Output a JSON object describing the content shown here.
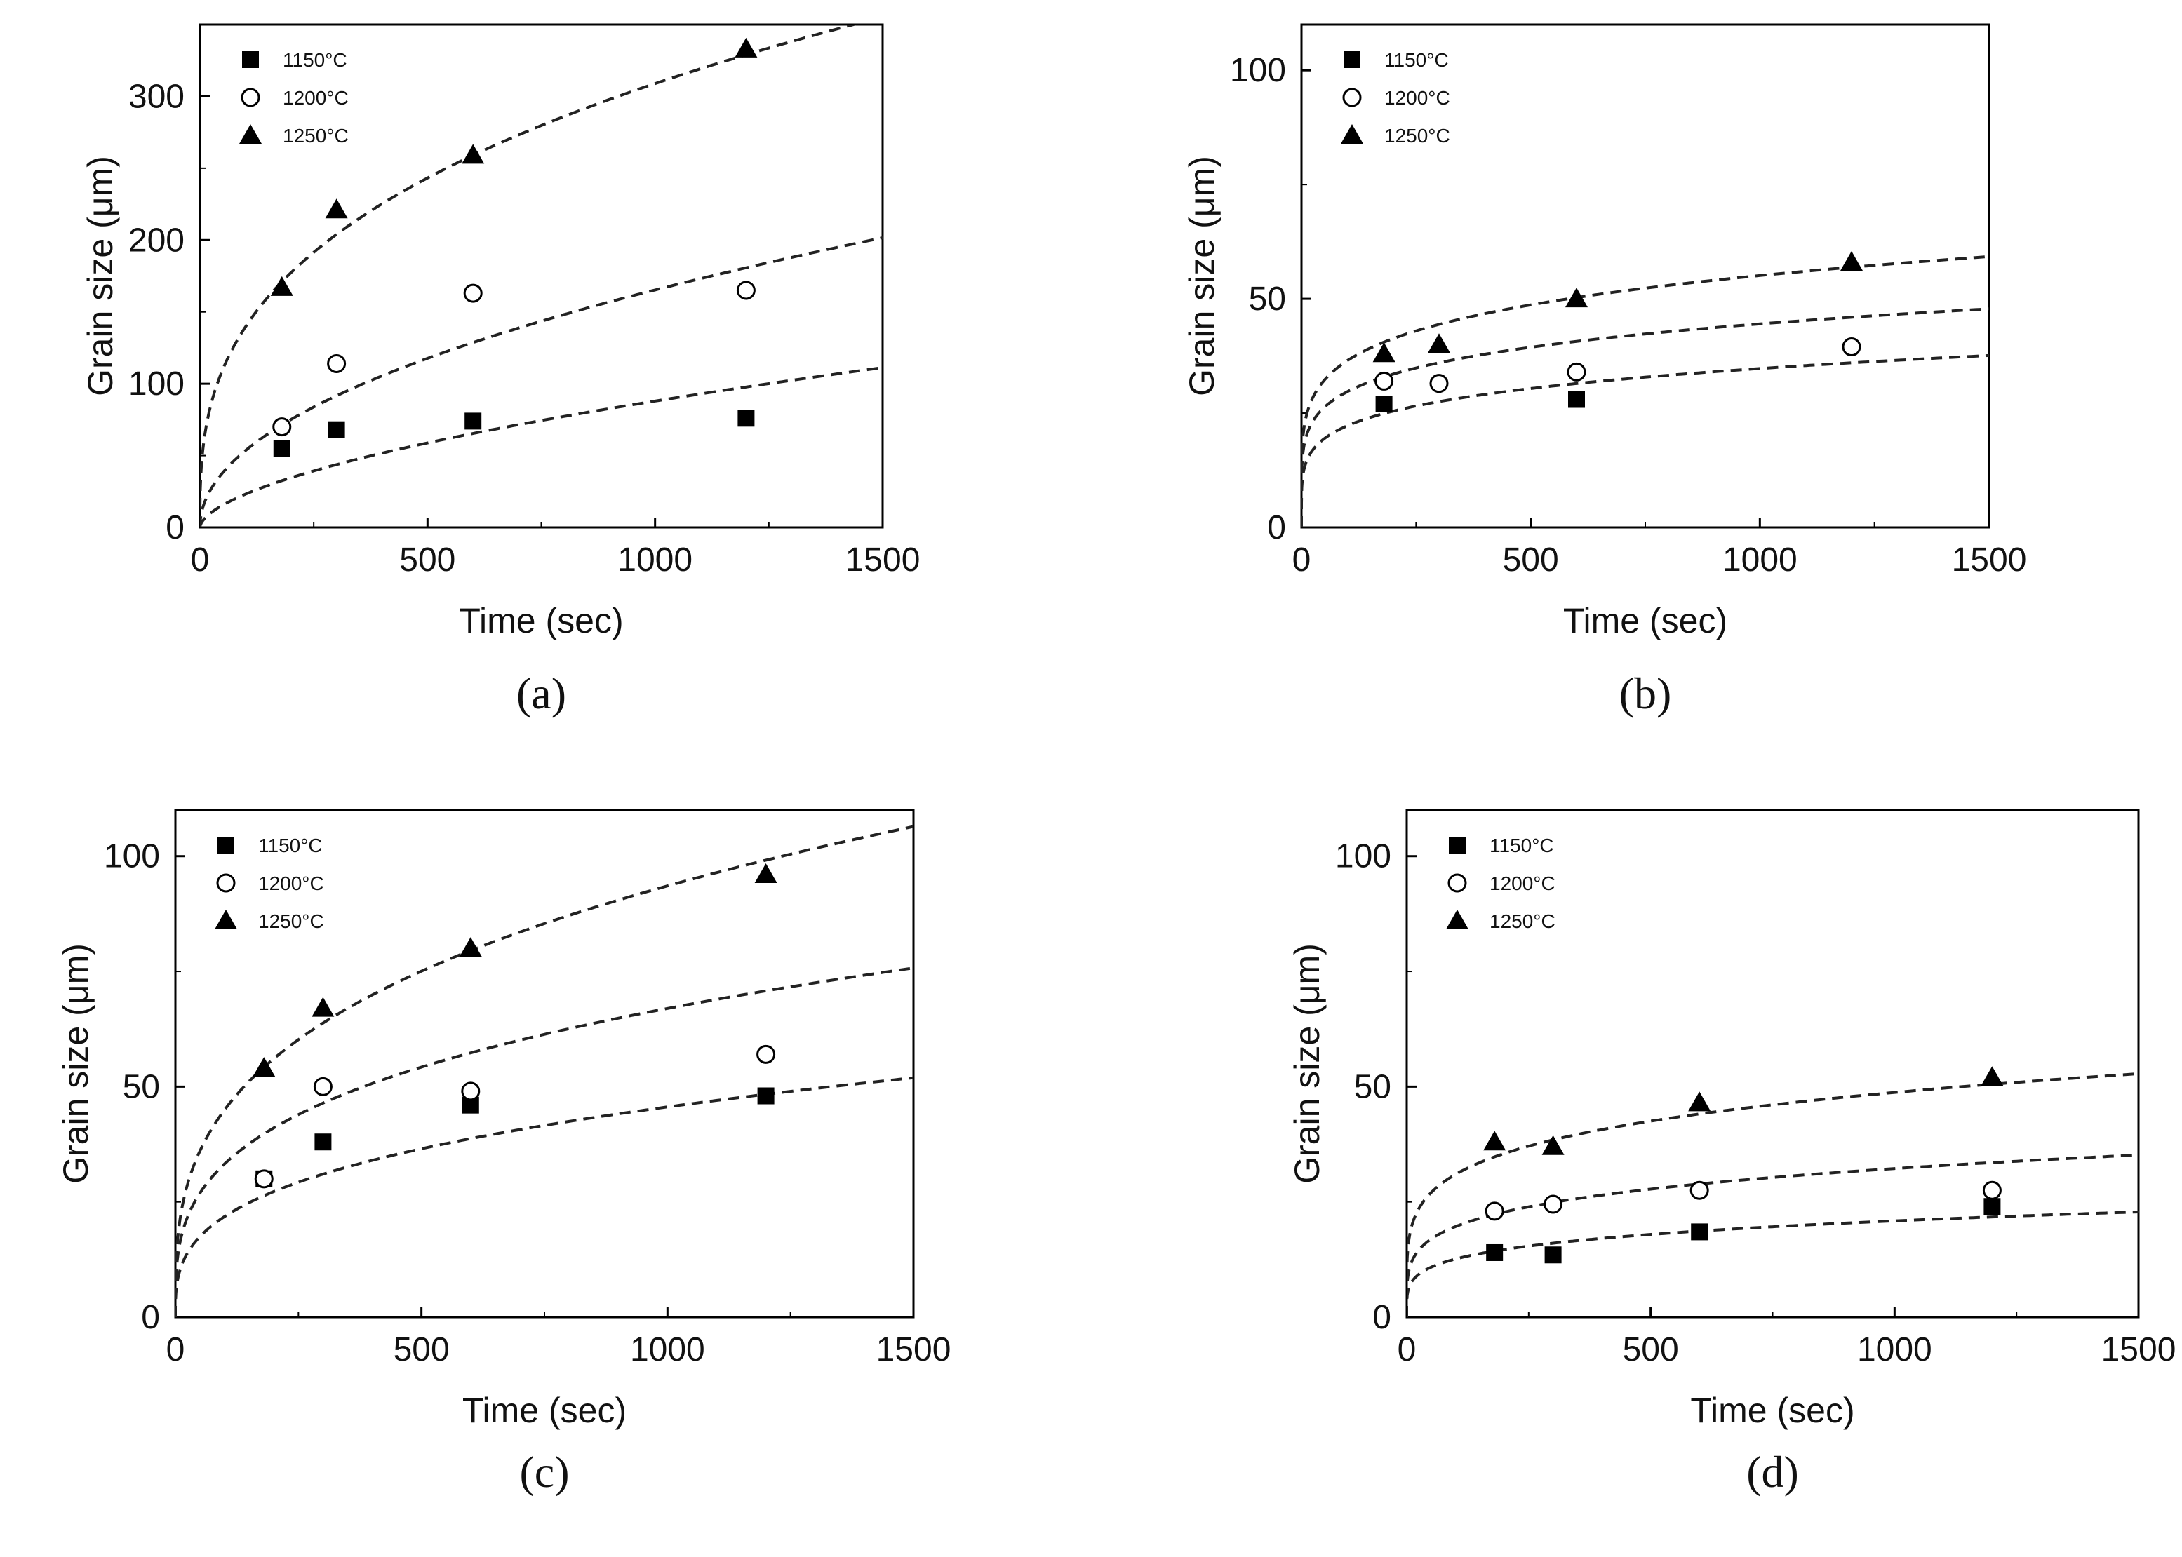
{
  "chart_data": [
    {
      "type": "scatter",
      "panel_label": "(a)",
      "xlabel": "Time (sec)",
      "ylabel": "Grain size (μm)",
      "xlim": [
        0,
        1500
      ],
      "ylim": [
        0,
        350
      ],
      "xticks": [
        0,
        500,
        1000,
        1500
      ],
      "yticks": [
        0,
        100,
        200,
        300
      ],
      "legend_position": "top-left",
      "series": [
        {
          "name": "1150°C",
          "marker": "square",
          "x": [
            180,
            300,
            600,
            1200
          ],
          "y": [
            55,
            68,
            74,
            76
          ],
          "fit": {
            "a": 1.6,
            "n": 0.58
          }
        },
        {
          "name": "1200°C",
          "marker": "circle",
          "x": [
            180,
            300,
            600,
            1200
          ],
          "y": [
            70,
            114,
            163,
            165
          ],
          "fit": {
            "a": 5.6,
            "n": 0.49
          }
        },
        {
          "name": "1250°C",
          "marker": "triangle",
          "x": [
            180,
            300,
            600,
            1200
          ],
          "y": [
            167,
            221,
            259,
            333
          ],
          "fit": {
            "a": 28.5,
            "n": 0.345
          }
        }
      ]
    },
    {
      "type": "scatter",
      "panel_label": "(b)",
      "xlabel": "Time (sec)",
      "ylabel": "Grain size (μm)",
      "xlim": [
        0,
        1500
      ],
      "ylim": [
        0,
        110
      ],
      "xticks": [
        0,
        500,
        1000,
        1500
      ],
      "yticks": [
        0,
        50,
        100
      ],
      "legend_position": "top-left",
      "series": [
        {
          "name": "1150°C",
          "marker": "square",
          "x": [
            180,
            600
          ],
          "y": [
            27,
            28
          ],
          "fit": {
            "a": 9.1,
            "n": 0.194
          }
        },
        {
          "name": "1200°C",
          "marker": "circle",
          "x": [
            180,
            300,
            600,
            1200
          ],
          "y": [
            32,
            31.5,
            34,
            39.5
          ],
          "fit": {
            "a": 13.2,
            "n": 0.176
          }
        },
        {
          "name": "1250°C",
          "marker": "triangle",
          "x": [
            180,
            300,
            600,
            1200
          ],
          "y": [
            38,
            40,
            50,
            58
          ],
          "fit": {
            "a": 16.0,
            "n": 0.179
          }
        }
      ]
    },
    {
      "type": "scatter",
      "panel_label": "(c)",
      "xlabel": "Time (sec)",
      "ylabel": "Grain size (μm)",
      "xlim": [
        0,
        1500
      ],
      "ylim": [
        0,
        110
      ],
      "xticks": [
        0,
        500,
        1000,
        1500
      ],
      "yticks": [
        0,
        50,
        100
      ],
      "legend_position": "top-left",
      "series": [
        {
          "name": "1150°C",
          "marker": "square",
          "x": [
            180,
            300,
            600,
            1200
          ],
          "y": [
            30,
            38,
            46,
            48
          ],
          "fit": {
            "a": 5.0,
            "n": 0.32
          }
        },
        {
          "name": "1200°C",
          "marker": "circle",
          "x": [
            180,
            300,
            600,
            1200
          ],
          "y": [
            30,
            50,
            49,
            57
          ],
          "fit": {
            "a": 8.2,
            "n": 0.304
          }
        },
        {
          "name": "1250°C",
          "marker": "triangle",
          "x": [
            180,
            300,
            600,
            1200
          ],
          "y": [
            54,
            67,
            80,
            96
          ],
          "fit": {
            "a": 10.4,
            "n": 0.318
          }
        }
      ]
    },
    {
      "type": "scatter",
      "panel_label": "(d)",
      "xlabel": "Time (sec)",
      "ylabel": "Grain size (μm)",
      "xlim": [
        0,
        1500
      ],
      "ylim": [
        0,
        110
      ],
      "xticks": [
        0,
        500,
        1000,
        1500
      ],
      "yticks": [
        0,
        50,
        100
      ],
      "legend_position": "top-left",
      "series": [
        {
          "name": "1150°C",
          "marker": "square",
          "x": [
            180,
            300,
            600,
            1200
          ],
          "y": [
            14,
            13.5,
            18.5,
            24
          ],
          "fit": {
            "a": 4.6,
            "n": 0.219
          }
        },
        {
          "name": "1200°C",
          "marker": "circle",
          "x": [
            180,
            300,
            600,
            1200
          ],
          "y": [
            23,
            24.5,
            27.5,
            27.5
          ],
          "fit": {
            "a": 7.3,
            "n": 0.215
          }
        },
        {
          "name": "1250°C",
          "marker": "triangle",
          "x": [
            180,
            300,
            600,
            1200
          ],
          "y": [
            38,
            37,
            46.5,
            52
          ],
          "fit": {
            "a": 12.5,
            "n": 0.197
          }
        }
      ]
    }
  ]
}
